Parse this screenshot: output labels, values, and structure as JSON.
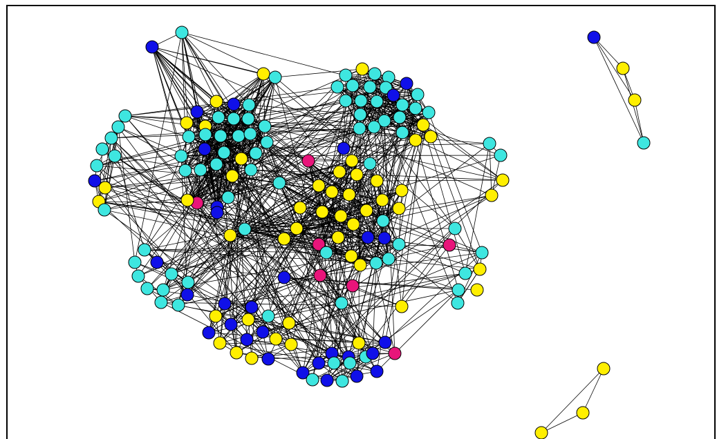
{
  "colors": {
    "background": "#ffffff",
    "frame": "#000000",
    "edge": "#000000",
    "node_outline": "#000000",
    "node_fill": {
      "cyan": "#3ee6e0",
      "yellow": "#ffef00",
      "blue": "#1010e8",
      "magenta": "#e8157a"
    }
  },
  "graph": {
    "node_groups": [
      "cyan",
      "yellow",
      "blue",
      "magenta"
    ],
    "clusters": [
      {
        "id": "left-dense-cluster",
        "kind": "network-cluster"
      },
      {
        "id": "top-right-dense-cluster",
        "kind": "network-cluster"
      },
      {
        "id": "central-yellow-cluster",
        "kind": "network-cluster"
      },
      {
        "id": "left-ring-cluster",
        "kind": "network-cluster"
      },
      {
        "id": "lower-left-cluster",
        "kind": "network-cluster"
      },
      {
        "id": "bottom-left-cluster",
        "kind": "network-cluster"
      },
      {
        "id": "bottom-center-cluster",
        "kind": "network-cluster"
      },
      {
        "id": "right-ring-cluster",
        "kind": "network-cluster"
      },
      {
        "id": "far-right-ring-cluster",
        "kind": "network-cluster"
      },
      {
        "id": "isolated-top-right-component",
        "kind": "component"
      },
      {
        "id": "isolated-bottom-right-component",
        "kind": "component"
      }
    ]
  }
}
